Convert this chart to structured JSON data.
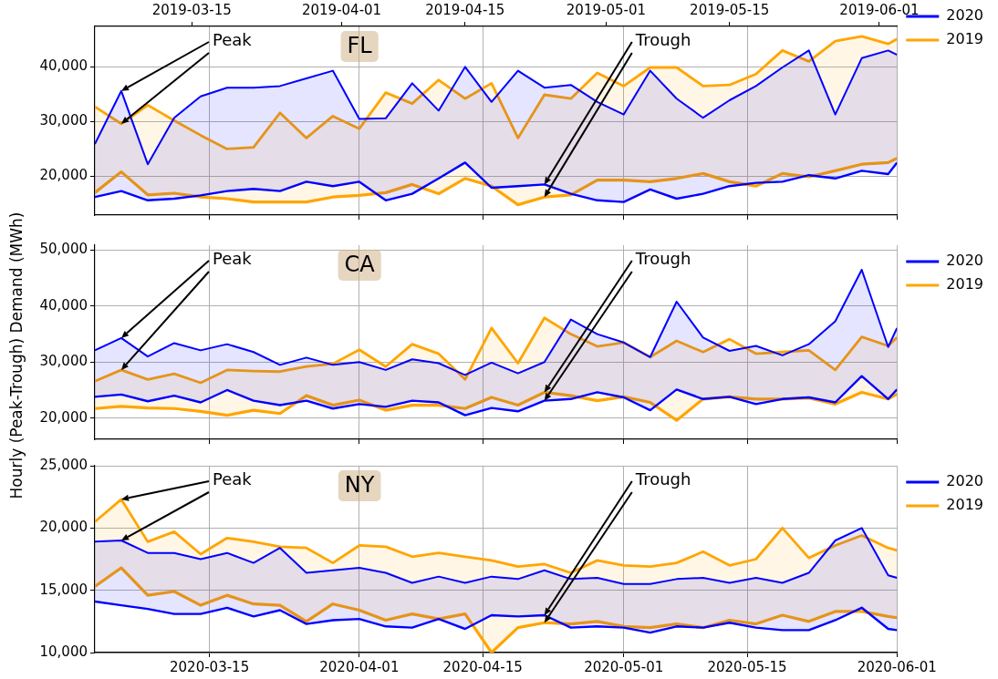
{
  "chart_data": [
    {
      "type": "area",
      "title": "FL",
      "x": [
        "2020-03-02",
        "2020-03-05",
        "2020-03-08",
        "2020-03-11",
        "2020-03-14",
        "2020-03-17",
        "2020-03-20",
        "2020-03-23",
        "2020-03-26",
        "2020-03-29",
        "2020-04-01",
        "2020-04-04",
        "2020-04-07",
        "2020-04-10",
        "2020-04-13",
        "2020-04-16",
        "2020-04-19",
        "2020-04-22",
        "2020-04-25",
        "2020-04-28",
        "2020-05-01",
        "2020-05-04",
        "2020-05-07",
        "2020-05-10",
        "2020-05-13",
        "2020-05-16",
        "2020-05-19",
        "2020-05-22",
        "2020-05-25",
        "2020-05-28",
        "2020-05-31",
        "2020-06-01"
      ],
      "series": [
        {
          "name": "2020",
          "type": "area",
          "color": "#0000ff",
          "values": [
            25900,
            35600,
            22200,
            30700,
            34600,
            36200,
            36200,
            36500,
            37900,
            39300,
            30500,
            30600,
            37000,
            32000,
            40000,
            33600,
            39300,
            36200,
            36700,
            33600,
            31300,
            39300,
            34200,
            30700,
            33900,
            36500,
            39900,
            43000,
            31300,
            41600,
            43000,
            42200
          ]
        },
        {
          "type": "line",
          "color": "#0000ff",
          "values": [
            16200,
            17300,
            15600,
            15900,
            16500,
            17300,
            17700,
            17300,
            19000,
            18200,
            19000,
            15600,
            16800,
            19600,
            22500,
            17900,
            18200,
            18500,
            16800,
            15600,
            15300,
            17600,
            15900,
            16800,
            18200,
            18800,
            19000,
            20200,
            19600,
            21000,
            20400,
            22500
          ]
        },
        {
          "name": "2019",
          "type": "area",
          "color": "#ffa500",
          "values": [
            32700,
            29600,
            33000,
            30200,
            27500,
            25000,
            25300,
            31600,
            27000,
            31000,
            28700,
            35300,
            33300,
            37600,
            34200,
            37000,
            27000,
            34900,
            34200,
            38900,
            36500,
            39900,
            39900,
            36500,
            36700,
            38700,
            43000,
            41000,
            44700,
            45600,
            44200,
            45100
          ]
        },
        {
          "type": "line",
          "color": "#ffa500",
          "values": [
            17000,
            20800,
            16600,
            16900,
            16200,
            15900,
            15300,
            15300,
            15300,
            16200,
            16500,
            17000,
            18500,
            16800,
            19600,
            18200,
            14800,
            16200,
            16600,
            19300,
            19300,
            19000,
            19600,
            20500,
            19000,
            18200,
            20500,
            19900,
            21000,
            22200,
            22500,
            23300
          ]
        }
      ],
      "xlim": [
        "2020-03-02",
        "2020-06-01"
      ],
      "xticks": [
        "2020-03-15",
        "2020-04-01",
        "2020-04-15",
        "2020-05-01",
        "2020-05-15",
        "2020-06-01"
      ],
      "x2lim": [
        "2019-03-04",
        "2019-06-03"
      ],
      "x2ticks": [
        "2019-03-15",
        "2019-04-01",
        "2019-04-15",
        "2019-05-01",
        "2019-05-15",
        "2019-06-01"
      ],
      "ylim": [
        12900,
        47400
      ],
      "yticks": [
        {
          "value": 20000,
          "label": "20,000"
        },
        {
          "value": 30000,
          "label": "30,000"
        },
        {
          "value": 40000,
          "label": "40,000"
        }
      ],
      "grid": true,
      "legend": "top right",
      "tick_labels": "y",
      "annotations": [
        {
          "text": "Peak",
          "x": "2020-03-05",
          "y": 35600
        },
        {
          "text": "Trough",
          "x": "2020-04-22",
          "y": 18500
        }
      ]
    },
    {
      "type": "area",
      "title": "CA",
      "ylabel": "Hourly (Peak-Trough) Demand (MWh)",
      "x": [
        "2020-03-02",
        "2020-03-05",
        "2020-03-08",
        "2020-03-11",
        "2020-03-14",
        "2020-03-17",
        "2020-03-20",
        "2020-03-23",
        "2020-03-26",
        "2020-03-29",
        "2020-04-01",
        "2020-04-04",
        "2020-04-07",
        "2020-04-10",
        "2020-04-13",
        "2020-04-16",
        "2020-04-19",
        "2020-04-22",
        "2020-04-25",
        "2020-04-28",
        "2020-05-01",
        "2020-05-04",
        "2020-05-07",
        "2020-05-10",
        "2020-05-13",
        "2020-05-16",
        "2020-05-19",
        "2020-05-22",
        "2020-05-25",
        "2020-05-28",
        "2020-05-31",
        "2020-06-01"
      ],
      "series": [
        {
          "name": "2020",
          "type": "area",
          "color": "#0000ff",
          "values": [
            32100,
            34300,
            31000,
            33400,
            32100,
            33200,
            31800,
            29500,
            30800,
            29500,
            30000,
            28600,
            30500,
            29800,
            27700,
            29900,
            28000,
            30000,
            37600,
            35000,
            33500,
            30900,
            40800,
            34400,
            32000,
            32900,
            31200,
            33200,
            37300,
            46500,
            32700,
            36100
          ]
        },
        {
          "type": "line",
          "color": "#0000ff",
          "values": [
            23800,
            24200,
            23000,
            24000,
            22800,
            25000,
            23100,
            22300,
            23100,
            21700,
            22500,
            22000,
            23100,
            22800,
            20500,
            21800,
            21200,
            23100,
            23400,
            24600,
            23700,
            21400,
            25100,
            23400,
            23800,
            22500,
            23400,
            23700,
            22800,
            27500,
            23400,
            25100
          ]
        },
        {
          "name": "2019",
          "type": "area",
          "color": "#ffa500",
          "values": [
            26600,
            28600,
            26900,
            27900,
            26300,
            28600,
            28400,
            28300,
            29200,
            29700,
            32200,
            29200,
            33200,
            31500,
            26900,
            36100,
            29800,
            37900,
            35000,
            32800,
            33500,
            30900,
            33800,
            31800,
            34100,
            31500,
            31800,
            32100,
            28600,
            34500,
            32900,
            34400
          ]
        },
        {
          "type": "line",
          "color": "#ffa500",
          "values": [
            21700,
            22100,
            21800,
            21700,
            21200,
            20500,
            21400,
            20800,
            24000,
            22300,
            23200,
            21400,
            22300,
            22300,
            21700,
            23700,
            22300,
            24600,
            24000,
            23100,
            23800,
            22800,
            19600,
            23400,
            23800,
            23400,
            23400,
            23600,
            22500,
            24600,
            23400,
            24300
          ]
        }
      ],
      "xlim": [
        "2020-03-02",
        "2020-06-01"
      ],
      "xticks": [
        "2020-03-15",
        "2020-04-01",
        "2020-04-15",
        "2020-05-01",
        "2020-05-15",
        "2020-06-01"
      ],
      "ylim": [
        16200,
        50900
      ],
      "yticks": [
        {
          "value": 20000,
          "label": "20,000"
        },
        {
          "value": 30000,
          "label": "30,000"
        },
        {
          "value": 40000,
          "label": "40,000"
        },
        {
          "value": 50000,
          "label": "50,000"
        }
      ],
      "grid": true,
      "legend": "top right",
      "tick_labels": "y",
      "annotations": [
        {
          "text": "Peak",
          "x": "2020-03-05",
          "y": 34300
        },
        {
          "text": "Trough",
          "x": "2020-04-22",
          "y": 23100
        }
      ]
    },
    {
      "type": "area",
      "title": "NY",
      "x": [
        "2020-03-02",
        "2020-03-05",
        "2020-03-08",
        "2020-03-11",
        "2020-03-14",
        "2020-03-17",
        "2020-03-20",
        "2020-03-23",
        "2020-03-26",
        "2020-03-29",
        "2020-04-01",
        "2020-04-04",
        "2020-04-07",
        "2020-04-10",
        "2020-04-13",
        "2020-04-16",
        "2020-04-19",
        "2020-04-22",
        "2020-04-25",
        "2020-04-28",
        "2020-05-01",
        "2020-05-04",
        "2020-05-07",
        "2020-05-10",
        "2020-05-13",
        "2020-05-16",
        "2020-05-19",
        "2020-05-22",
        "2020-05-25",
        "2020-05-28",
        "2020-05-31",
        "2020-06-01"
      ],
      "series": [
        {
          "name": "2020",
          "type": "area",
          "color": "#0000ff",
          "values": [
            18900,
            19000,
            18000,
            18000,
            17500,
            18000,
            17200,
            18400,
            16400,
            16600,
            16800,
            16400,
            15600,
            16100,
            15600,
            16100,
            15900,
            16600,
            15900,
            16000,
            15500,
            15500,
            15900,
            16000,
            15600,
            16000,
            15600,
            16400,
            19000,
            20000,
            16200,
            16000
          ]
        },
        {
          "type": "line",
          "color": "#0000ff",
          "values": [
            14100,
            13800,
            13500,
            13100,
            13100,
            13600,
            12900,
            13400,
            12300,
            12600,
            12700,
            12100,
            12000,
            12700,
            11900,
            13000,
            12900,
            13000,
            12000,
            12100,
            12000,
            11600,
            12100,
            12000,
            12400,
            12000,
            11800,
            11800,
            12600,
            13600,
            11900,
            11800
          ]
        },
        {
          "name": "2019",
          "type": "area",
          "color": "#ffa500",
          "values": [
            20500,
            22300,
            18900,
            19700,
            17900,
            19200,
            18900,
            18500,
            18400,
            17200,
            18600,
            18500,
            17700,
            18000,
            17700,
            17400,
            16900,
            17100,
            16400,
            17400,
            17000,
            16900,
            17200,
            18100,
            17000,
            17500,
            20000,
            17600,
            18600,
            19400,
            18400,
            18200
          ]
        },
        {
          "type": "line",
          "color": "#ffa500",
          "values": [
            15300,
            16800,
            14600,
            14900,
            13800,
            14600,
            13900,
            13800,
            12500,
            13900,
            13400,
            12600,
            13100,
            12700,
            13100,
            10000,
            12000,
            12400,
            12300,
            12500,
            12100,
            12000,
            12300,
            12000,
            12600,
            12300,
            13000,
            12500,
            13300,
            13300,
            12900,
            12800
          ]
        }
      ],
      "xlim": [
        "2020-03-02",
        "2020-06-01"
      ],
      "xticks": [
        "2020-03-15",
        "2020-04-01",
        "2020-04-15",
        "2020-05-01",
        "2020-05-15",
        "2020-06-01"
      ],
      "ylim": [
        10000,
        25000
      ],
      "yticks": [
        {
          "value": 10000,
          "label": "10,000"
        },
        {
          "value": 15000,
          "label": "15,000"
        },
        {
          "value": 20000,
          "label": "20,000"
        },
        {
          "value": 25000,
          "label": "25,000"
        }
      ],
      "grid": true,
      "legend": "top right",
      "annotations": [
        {
          "text": "Peak",
          "x": "2020-03-05",
          "y": 22300
        },
        {
          "text": "Trough",
          "x": "2020-04-22",
          "y": 13000
        }
      ]
    }
  ]
}
